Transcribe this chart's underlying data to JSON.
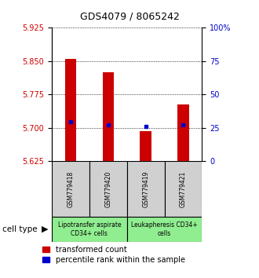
{
  "title": "GDS4079 / 8065242",
  "samples": [
    "GSM779418",
    "GSM779420",
    "GSM779419",
    "GSM779421"
  ],
  "red_values": [
    5.855,
    5.825,
    5.692,
    5.752
  ],
  "blue_values": [
    5.713,
    5.706,
    5.704,
    5.706
  ],
  "y_min": 5.625,
  "y_max": 5.925,
  "y_ticks_left": [
    5.625,
    5.7,
    5.775,
    5.85,
    5.925
  ],
  "y_ticks_right": [
    0,
    25,
    50,
    75,
    100
  ],
  "group1_color": "#d0d0d0",
  "group2_color": "#90EE90",
  "red_color": "#cc0000",
  "blue_color": "#0000cc",
  "bar_bottom": 5.625,
  "bar_width": 0.3,
  "label_red": "transformed count",
  "label_blue": "percentile rank within the sample",
  "cell_type_label": "cell type",
  "group1_label": "Lipotransfer aspirate\nCD34+ cells",
  "group2_label": "Leukapheresis CD34+\ncells"
}
